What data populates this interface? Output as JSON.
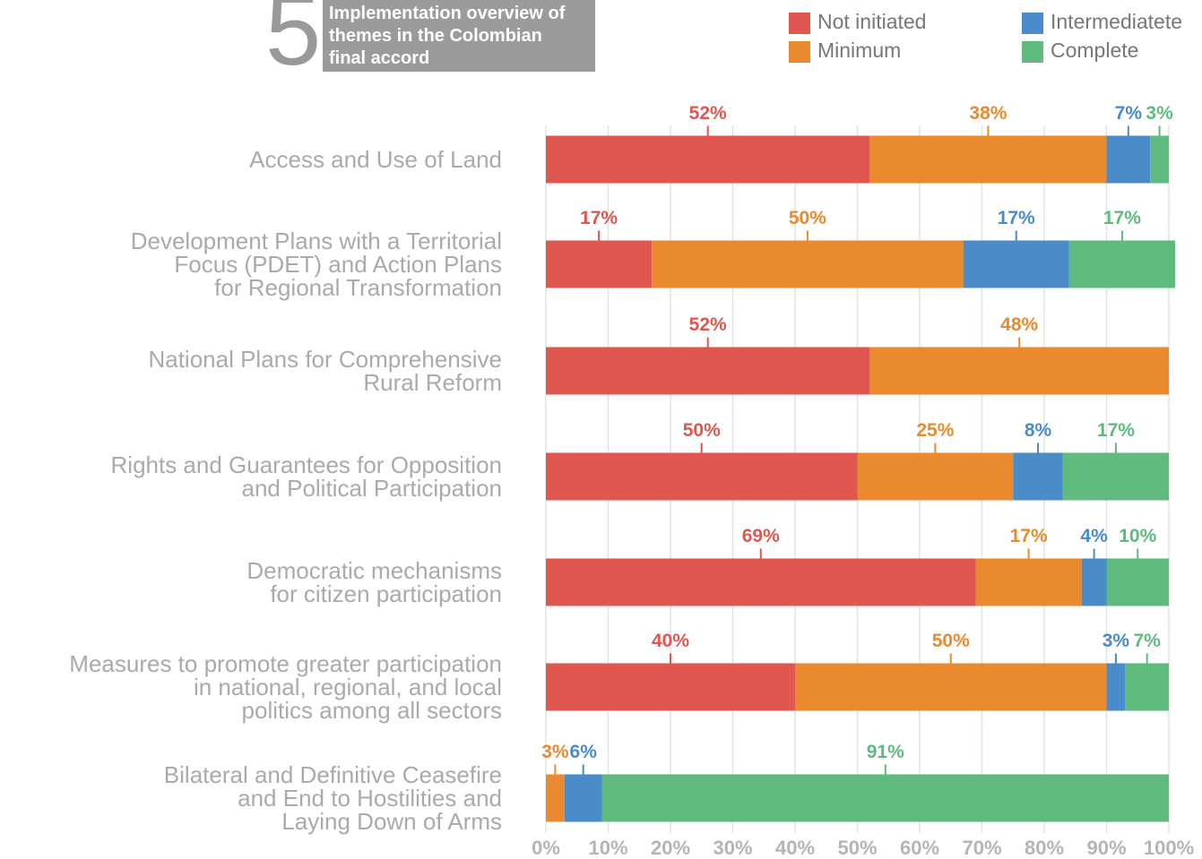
{
  "chart_data": {
    "type": "stacked-bar-horizontal",
    "figure_number": "5",
    "title": "Implementation overview of\nthemes in the Colombian\nfinal accord",
    "categories": [
      "Access and Use of Land",
      "Development Plans with a Territorial\nFocus (PDET) and Action Plans\nfor Regional Transformation",
      "National Plans for Comprehensive\nRural Reform",
      "Rights and Guarantees for Opposition\nand Political Participation",
      "Democratic mechanisms\nfor citizen participation",
      "Measures to promote greater participation\nin national, regional, and local\npolitics among all sectors",
      "Bilateral and Definitive Ceasefire\nand End to Hostilities and\nLaying Down of Arms"
    ],
    "series": [
      {
        "name": "Not initiated",
        "color": "#e0574f",
        "values": [
          52,
          17,
          52,
          50,
          69,
          40,
          null
        ],
        "value_labels": [
          "52%",
          "17%",
          "52%",
          "50%",
          "69%",
          "40%",
          null
        ]
      },
      {
        "name": "Minimum",
        "color": "#e88a2d",
        "values": [
          38,
          50,
          48,
          25,
          17,
          50,
          3
        ],
        "value_labels": [
          "38%",
          "50%",
          "48%",
          "25%",
          "17%",
          "50%",
          "3%"
        ]
      },
      {
        "name": "Intermediatete",
        "color": "#4a8bc9",
        "values": [
          7,
          17,
          null,
          8,
          4,
          3,
          6
        ],
        "value_labels": [
          "7%",
          "17%",
          null,
          "8%",
          "4%",
          "3%",
          "6%"
        ]
      },
      {
        "name": "Complete",
        "color": "#5fba7e",
        "values": [
          3,
          17,
          null,
          17,
          10,
          7,
          91
        ],
        "value_labels": [
          "3%",
          "17%",
          null,
          "17%",
          "10%",
          "7%",
          "91%"
        ]
      }
    ],
    "xlim": [
      0,
      100
    ],
    "xticks": [
      {
        "value": 0,
        "label": "0%"
      },
      {
        "value": 10,
        "label": "10%"
      },
      {
        "value": 20,
        "label": "20%"
      },
      {
        "value": 30,
        "label": "30%"
      },
      {
        "value": 40,
        "label": "40%"
      },
      {
        "value": 50,
        "label": "50%"
      },
      {
        "value": 60,
        "label": "60%"
      },
      {
        "value": 70,
        "label": "70%"
      },
      {
        "value": 80,
        "label": "80%"
      },
      {
        "value": 90,
        "label": "90%"
      },
      {
        "value": 100,
        "label": "100%"
      }
    ],
    "grid": true
  }
}
